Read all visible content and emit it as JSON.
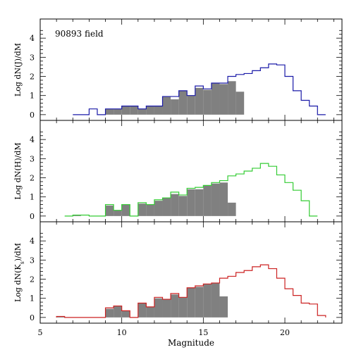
{
  "chart_data": [
    {
      "type": "bar",
      "panel": "J",
      "annotation": "90893 field",
      "ylabel": "Log dN(J)/dM",
      "xlim": [
        5,
        23.5
      ],
      "ylim": [
        -0.3,
        5.0
      ],
      "bin_width": 0.5,
      "outline_color": "#1a1aa8",
      "series": [
        {
          "style": "step-outline",
          "x": [
            7.0,
            7.5,
            8.0,
            8.5,
            9.0,
            9.5,
            10.0,
            10.5,
            11.0,
            11.5,
            12.0,
            12.5,
            13.0,
            13.5,
            14.0,
            14.5,
            15.0,
            15.5,
            16.0,
            16.5,
            17.0,
            17.5,
            18.0,
            18.5,
            19.0,
            19.5,
            20.0,
            20.5,
            21.0,
            21.5,
            22.0
          ],
          "values": [
            0.0,
            0.0,
            0.3,
            0.0,
            0.3,
            0.3,
            0.45,
            0.45,
            0.3,
            0.45,
            0.45,
            0.95,
            0.95,
            1.25,
            1.0,
            1.5,
            1.35,
            1.65,
            1.65,
            2.0,
            2.1,
            2.15,
            2.3,
            2.45,
            2.65,
            2.6,
            2.0,
            1.25,
            0.75,
            0.45,
            0.0
          ]
        },
        {
          "style": "filled",
          "color": "#808080",
          "x": [
            7.0,
            7.5,
            8.0,
            8.5,
            9.0,
            9.5,
            10.0,
            10.5,
            11.0,
            11.5,
            12.0,
            12.5,
            13.0,
            13.5,
            14.0,
            14.5,
            15.0,
            15.5,
            16.0,
            16.5,
            17.0
          ],
          "values": [
            0.0,
            0.0,
            0.0,
            0.0,
            0.3,
            0.3,
            0.45,
            0.45,
            0.3,
            0.45,
            0.45,
            0.95,
            0.8,
            1.25,
            1.0,
            1.4,
            1.3,
            1.65,
            1.6,
            1.75,
            1.2
          ]
        }
      ]
    },
    {
      "type": "bar",
      "panel": "H",
      "ylabel": "Log dN(H)/dM",
      "xlim": [
        5,
        23.5
      ],
      "ylim": [
        -0.3,
        5.0
      ],
      "bin_width": 0.5,
      "outline_color": "#33cc33",
      "series": [
        {
          "style": "step-outline",
          "x": [
            6.5,
            7.0,
            7.5,
            8.0,
            8.5,
            9.0,
            9.5,
            10.0,
            10.5,
            11.0,
            11.5,
            12.0,
            12.5,
            13.0,
            13.5,
            14.0,
            14.5,
            15.0,
            15.5,
            16.0,
            16.5,
            17.0,
            17.5,
            18.0,
            18.5,
            19.0,
            19.5,
            20.0,
            20.5,
            21.0,
            21.5
          ],
          "values": [
            0.0,
            0.05,
            0.05,
            0.0,
            0.0,
            0.6,
            0.3,
            0.6,
            0.0,
            0.7,
            0.6,
            0.85,
            0.95,
            1.25,
            1.1,
            1.45,
            1.5,
            1.6,
            1.75,
            1.85,
            2.1,
            2.2,
            2.35,
            2.5,
            2.75,
            2.6,
            2.15,
            1.75,
            1.35,
            0.8,
            0.0
          ]
        },
        {
          "style": "filled",
          "color": "#808080",
          "x": [
            6.5,
            7.0,
            7.5,
            8.0,
            8.5,
            9.0,
            9.5,
            10.0,
            10.5,
            11.0,
            11.5,
            12.0,
            12.5,
            13.0,
            13.5,
            14.0,
            14.5,
            15.0,
            15.5,
            16.0,
            16.5
          ],
          "values": [
            0.0,
            0.05,
            0.0,
            0.0,
            0.0,
            0.55,
            0.3,
            0.6,
            0.0,
            0.65,
            0.6,
            0.8,
            0.95,
            1.15,
            1.05,
            1.4,
            1.4,
            1.6,
            1.7,
            1.75,
            0.7
          ]
        }
      ]
    },
    {
      "type": "bar",
      "panel": "Ks",
      "ylabel": "Log dN(K",
      "ylabel_sub": "s",
      "ylabel_tail": ")/dM",
      "xlabel": "Magnitude",
      "xlim": [
        5,
        23.5
      ],
      "ylim": [
        -0.3,
        5.0
      ],
      "bin_width": 0.5,
      "outline_color": "#cc2222",
      "series": [
        {
          "style": "step-outline",
          "x": [
            6.0,
            6.5,
            7.0,
            7.5,
            8.0,
            8.5,
            9.0,
            9.5,
            10.0,
            10.5,
            11.0,
            11.5,
            12.0,
            12.5,
            13.0,
            13.5,
            14.0,
            14.5,
            15.0,
            15.5,
            16.0,
            16.5,
            17.0,
            17.5,
            18.0,
            18.5,
            19.0,
            19.5,
            20.0,
            20.5,
            21.0,
            21.5,
            22.0
          ],
          "values": [
            0.05,
            0.0,
            0.0,
            0.0,
            0.0,
            0.0,
            0.5,
            0.6,
            0.35,
            0.0,
            0.75,
            0.55,
            1.05,
            0.95,
            1.25,
            1.05,
            1.55,
            1.65,
            1.75,
            1.8,
            2.05,
            2.15,
            2.35,
            2.45,
            2.65,
            2.75,
            2.55,
            2.05,
            1.5,
            1.15,
            0.75,
            0.7,
            0.1
          ]
        },
        {
          "style": "filled",
          "color": "#808080",
          "x": [
            6.0,
            6.5,
            7.0,
            7.5,
            8.0,
            8.5,
            9.0,
            9.5,
            10.0,
            10.5,
            11.0,
            11.5,
            12.0,
            12.5,
            13.0,
            13.5,
            14.0,
            14.5,
            15.0,
            15.5,
            16.0
          ],
          "values": [
            0.05,
            0.0,
            0.0,
            0.0,
            0.0,
            0.0,
            0.45,
            0.6,
            0.35,
            0.0,
            0.75,
            0.55,
            1.0,
            0.95,
            1.2,
            1.05,
            1.55,
            1.6,
            1.75,
            1.8,
            1.1
          ]
        }
      ]
    }
  ],
  "x_ticks": [
    "5",
    "10",
    "15",
    "20"
  ],
  "y_ticks": [
    "0",
    "1",
    "2",
    "3",
    "4"
  ]
}
